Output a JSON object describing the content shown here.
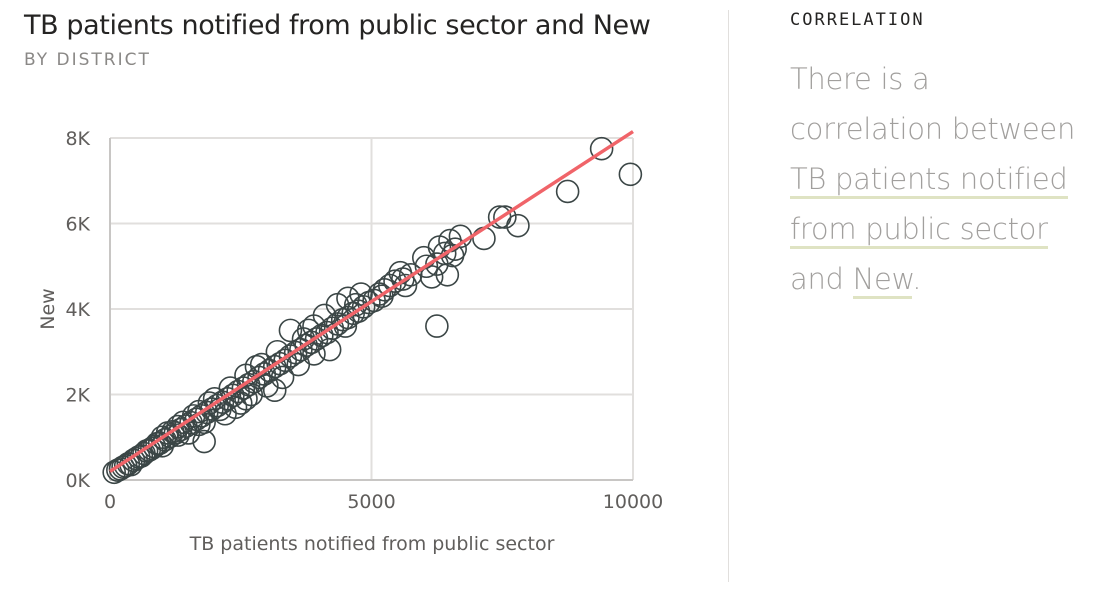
{
  "header": {
    "title": "TB patients notified from public sector and New",
    "subtitle": "BY DISTRICT"
  },
  "insight": {
    "heading": "CORRELATION",
    "line1": "There is a",
    "line2": "correlation between",
    "measure1a": "TB patients notified",
    "measure1b": "from public sector",
    "and": "and",
    "measure2": "New",
    "end": "."
  },
  "colors": {
    "marker_stroke": "#3b4646",
    "trend_line": "#f06469",
    "grid": "#e1dfdd",
    "axis_text": "#605e5c"
  },
  "chart_data": {
    "type": "scatter",
    "xlabel": "TB patients notified from public sector",
    "ylabel": "New",
    "xlim": [
      0,
      10000
    ],
    "ylim": [
      0,
      8000
    ],
    "x_ticks": [
      0,
      5000,
      10000
    ],
    "x_tick_labels": [
      "0",
      "5000",
      "10000"
    ],
    "y_ticks": [
      0,
      2000,
      4000,
      6000,
      8000
    ],
    "y_tick_labels": [
      "0K",
      "2K",
      "4K",
      "6K",
      "8K"
    ],
    "grid": true,
    "trend_line": {
      "x": [
        0,
        10000
      ],
      "y": [
        200,
        8150
      ]
    },
    "points": [
      [
        9400,
        7750
      ],
      [
        9950,
        7150
      ],
      [
        8750,
        6750
      ],
      [
        7550,
        6150
      ],
      [
        7450,
        6150
      ],
      [
        7800,
        5950
      ],
      [
        7150,
        5650
      ],
      [
        6700,
        5700
      ],
      [
        6500,
        5600
      ],
      [
        6600,
        5400
      ],
      [
        6400,
        5300
      ],
      [
        6550,
        5250
      ],
      [
        6250,
        5050
      ],
      [
        6050,
        5000
      ],
      [
        6150,
        4750
      ],
      [
        6450,
        4800
      ],
      [
        6250,
        3600
      ],
      [
        5750,
        4800
      ],
      [
        5550,
        4850
      ],
      [
        5450,
        4650
      ],
      [
        5250,
        4450
      ],
      [
        5350,
        4550
      ],
      [
        5650,
        4550
      ],
      [
        5150,
        4350
      ],
      [
        5050,
        4200
      ],
      [
        4950,
        4150
      ],
      [
        4850,
        4050
      ],
      [
        4750,
        3950
      ],
      [
        4650,
        3900
      ],
      [
        4550,
        3800
      ],
      [
        4450,
        3750
      ],
      [
        4350,
        3650
      ],
      [
        4250,
        3550
      ],
      [
        4350,
        4100
      ],
      [
        4550,
        4250
      ],
      [
        4800,
        4350
      ],
      [
        4150,
        3450
      ],
      [
        4050,
        3380
      ],
      [
        3950,
        3300
      ],
      [
        3850,
        3220
      ],
      [
        3750,
        3150
      ],
      [
        3650,
        3050
      ],
      [
        3550,
        2980
      ],
      [
        3450,
        2900
      ],
      [
        3350,
        2800
      ],
      [
        3250,
        2720
      ],
      [
        3150,
        2650
      ],
      [
        3050,
        2560
      ],
      [
        2950,
        2480
      ],
      [
        3900,
        2950
      ],
      [
        4200,
        3050
      ],
      [
        3300,
        2400
      ],
      [
        3600,
        2700
      ],
      [
        3450,
        3500
      ],
      [
        3150,
        2100
      ],
      [
        2850,
        2400
      ],
      [
        2750,
        2300
      ],
      [
        2650,
        2230
      ],
      [
        2550,
        2150
      ],
      [
        2450,
        2070
      ],
      [
        2350,
        1980
      ],
      [
        2250,
        1900
      ],
      [
        2150,
        1820
      ],
      [
        2050,
        1740
      ],
      [
        1950,
        1660
      ],
      [
        1850,
        1580
      ],
      [
        1750,
        1500
      ],
      [
        1650,
        1420
      ],
      [
        1550,
        1340
      ],
      [
        1450,
        1260
      ],
      [
        1350,
        1180
      ],
      [
        1250,
        1100
      ],
      [
        1150,
        1020
      ],
      [
        1050,
        940
      ],
      [
        950,
        860
      ],
      [
        850,
        780
      ],
      [
        750,
        700
      ],
      [
        650,
        620
      ],
      [
        550,
        540
      ],
      [
        450,
        460
      ],
      [
        350,
        380
      ],
      [
        250,
        300
      ],
      [
        150,
        230
      ],
      [
        80,
        180
      ],
      [
        2400,
        1700
      ],
      [
        2700,
        2000
      ],
      [
        2200,
        1550
      ],
      [
        1800,
        1350
      ],
      [
        1800,
        900
      ],
      [
        1500,
        1100
      ],
      [
        2900,
        2700
      ],
      [
        2600,
        2450
      ],
      [
        2000,
        1900
      ],
      [
        1700,
        1600
      ],
      [
        1400,
        1350
      ],
      [
        1100,
        1100
      ],
      [
        900,
        850
      ],
      [
        2500,
        1800
      ],
      [
        3000,
        2200
      ],
      [
        3700,
        3300
      ],
      [
        3900,
        3600
      ],
      [
        4100,
        3850
      ],
      [
        3800,
        3500
      ],
      [
        3200,
        3000
      ],
      [
        2800,
        2650
      ],
      [
        2300,
        2150
      ],
      [
        1900,
        1800
      ],
      [
        1600,
        1500
      ],
      [
        1300,
        1250
      ],
      [
        1000,
        1000
      ],
      [
        700,
        680
      ],
      [
        500,
        500
      ],
      [
        300,
        330
      ],
      [
        200,
        260
      ],
      [
        600,
        560
      ],
      [
        800,
        740
      ],
      [
        1200,
        1130
      ],
      [
        4500,
        3600
      ],
      [
        4700,
        4100
      ],
      [
        5200,
        4300
      ],
      [
        5600,
        4700
      ],
      [
        6000,
        5200
      ],
      [
        6300,
        5450
      ],
      [
        2600,
        1900
      ],
      [
        2100,
        1650
      ],
      [
        1700,
        1300
      ],
      [
        1300,
        1050
      ],
      [
        1000,
        800
      ],
      [
        400,
        360
      ]
    ]
  }
}
